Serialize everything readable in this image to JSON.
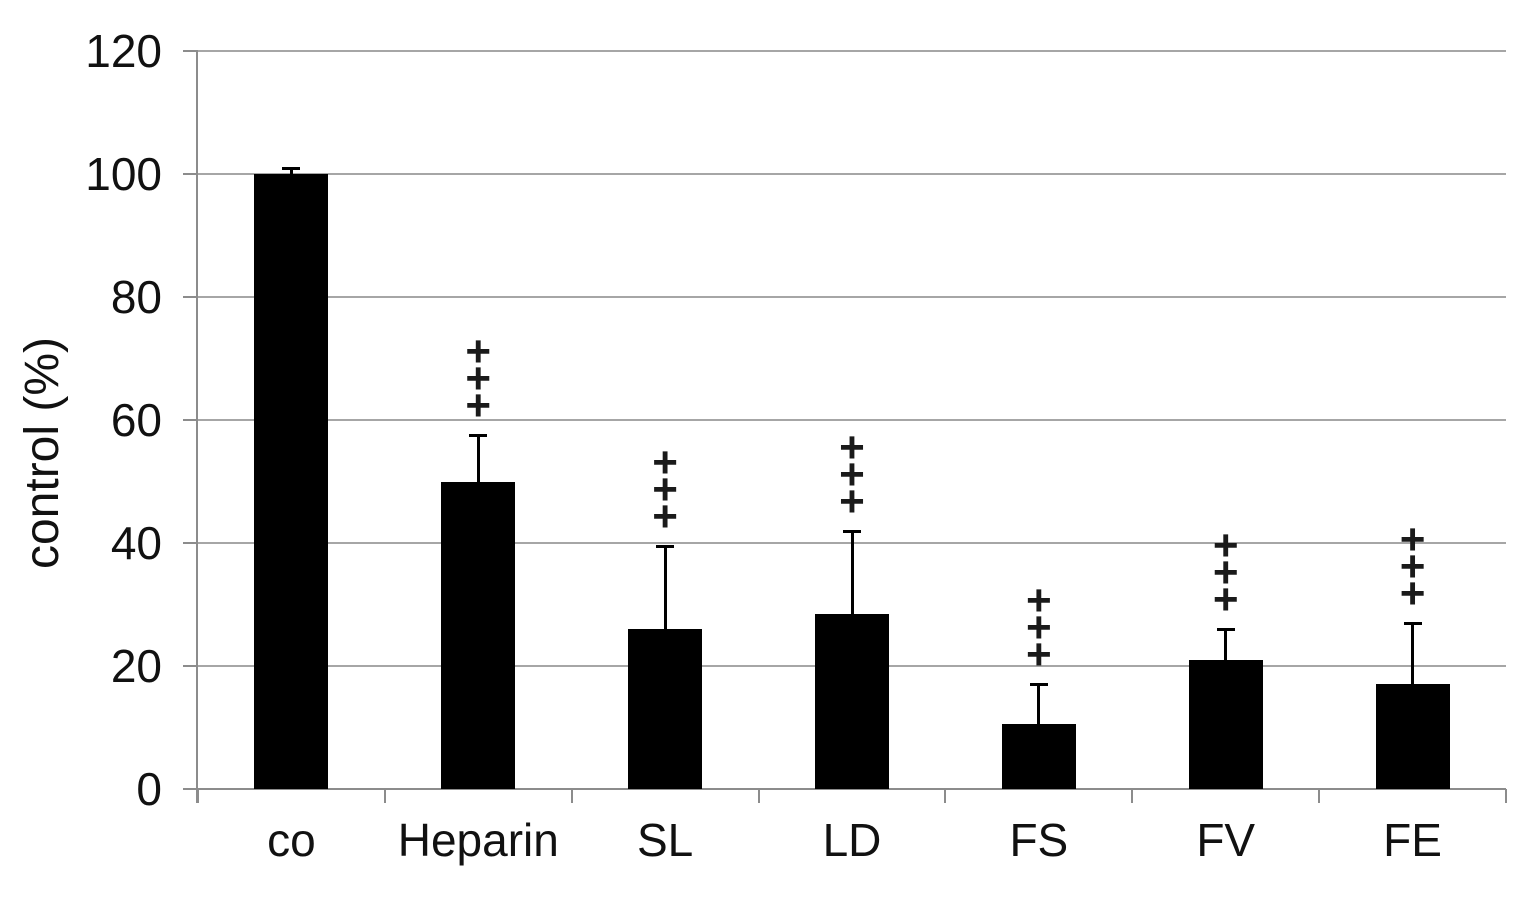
{
  "chart_data": {
    "type": "bar",
    "title": "",
    "xlabel": "",
    "ylabel": "control (%)",
    "ylim": [
      0,
      120
    ],
    "yticks": [
      0,
      20,
      40,
      60,
      80,
      100,
      120
    ],
    "grid": true,
    "legend": false,
    "categories": [
      "co",
      "Heparin",
      "SL",
      "LD",
      "FS",
      "FV",
      "FE"
    ],
    "values": [
      100,
      50,
      26,
      28.5,
      10.5,
      21,
      17
    ],
    "errors_upper": [
      1,
      7.5,
      13.5,
      13.5,
      6.5,
      5,
      10
    ],
    "annotations": [
      "",
      "+++",
      "+++",
      "+++",
      "+++",
      "+++",
      "+++"
    ],
    "annotation_style": "vertical-stack",
    "bar_color": "#000000",
    "gridline_color": "#a6a6a6",
    "axis_color": "#8c8c8c",
    "text_color": "#111111",
    "background_color": "#ffffff"
  }
}
